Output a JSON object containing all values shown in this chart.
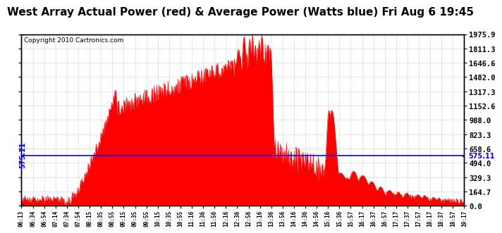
{
  "title": "West Array Actual Power (red) & Average Power (Watts blue) Fri Aug 6 19:45",
  "copyright": "Copyright 2010 Cartronics.com",
  "avg_power": 575.11,
  "ymax": 1975.9,
  "ymin": 0.0,
  "yticks": [
    0.0,
    164.7,
    329.3,
    494.0,
    658.6,
    823.3,
    988.0,
    1152.6,
    1317.3,
    1482.0,
    1646.6,
    1811.3,
    1975.9
  ],
  "xtick_labels": [
    "06:13",
    "06:34",
    "06:54",
    "07:14",
    "07:34",
    "07:54",
    "08:15",
    "08:35",
    "08:55",
    "09:15",
    "09:35",
    "09:55",
    "10:15",
    "10:35",
    "10:55",
    "11:16",
    "11:36",
    "11:56",
    "12:16",
    "12:36",
    "12:56",
    "13:16",
    "13:36",
    "13:56",
    "14:16",
    "14:36",
    "14:56",
    "15:16",
    "15:36",
    "15:57",
    "16:17",
    "16:37",
    "16:57",
    "17:17",
    "17:37",
    "17:57",
    "18:17",
    "18:37",
    "18:57",
    "19:17"
  ],
  "fill_color": "#FF0000",
  "line_color": "#FF0000",
  "avg_line_color": "#0000FF",
  "background_color": "#FFFFFF",
  "grid_color": "#CCCCCC",
  "title_fontsize": 11,
  "copyright_fontsize": 6.5,
  "avg_label": "575.11",
  "avg_label_fontsize": 7
}
